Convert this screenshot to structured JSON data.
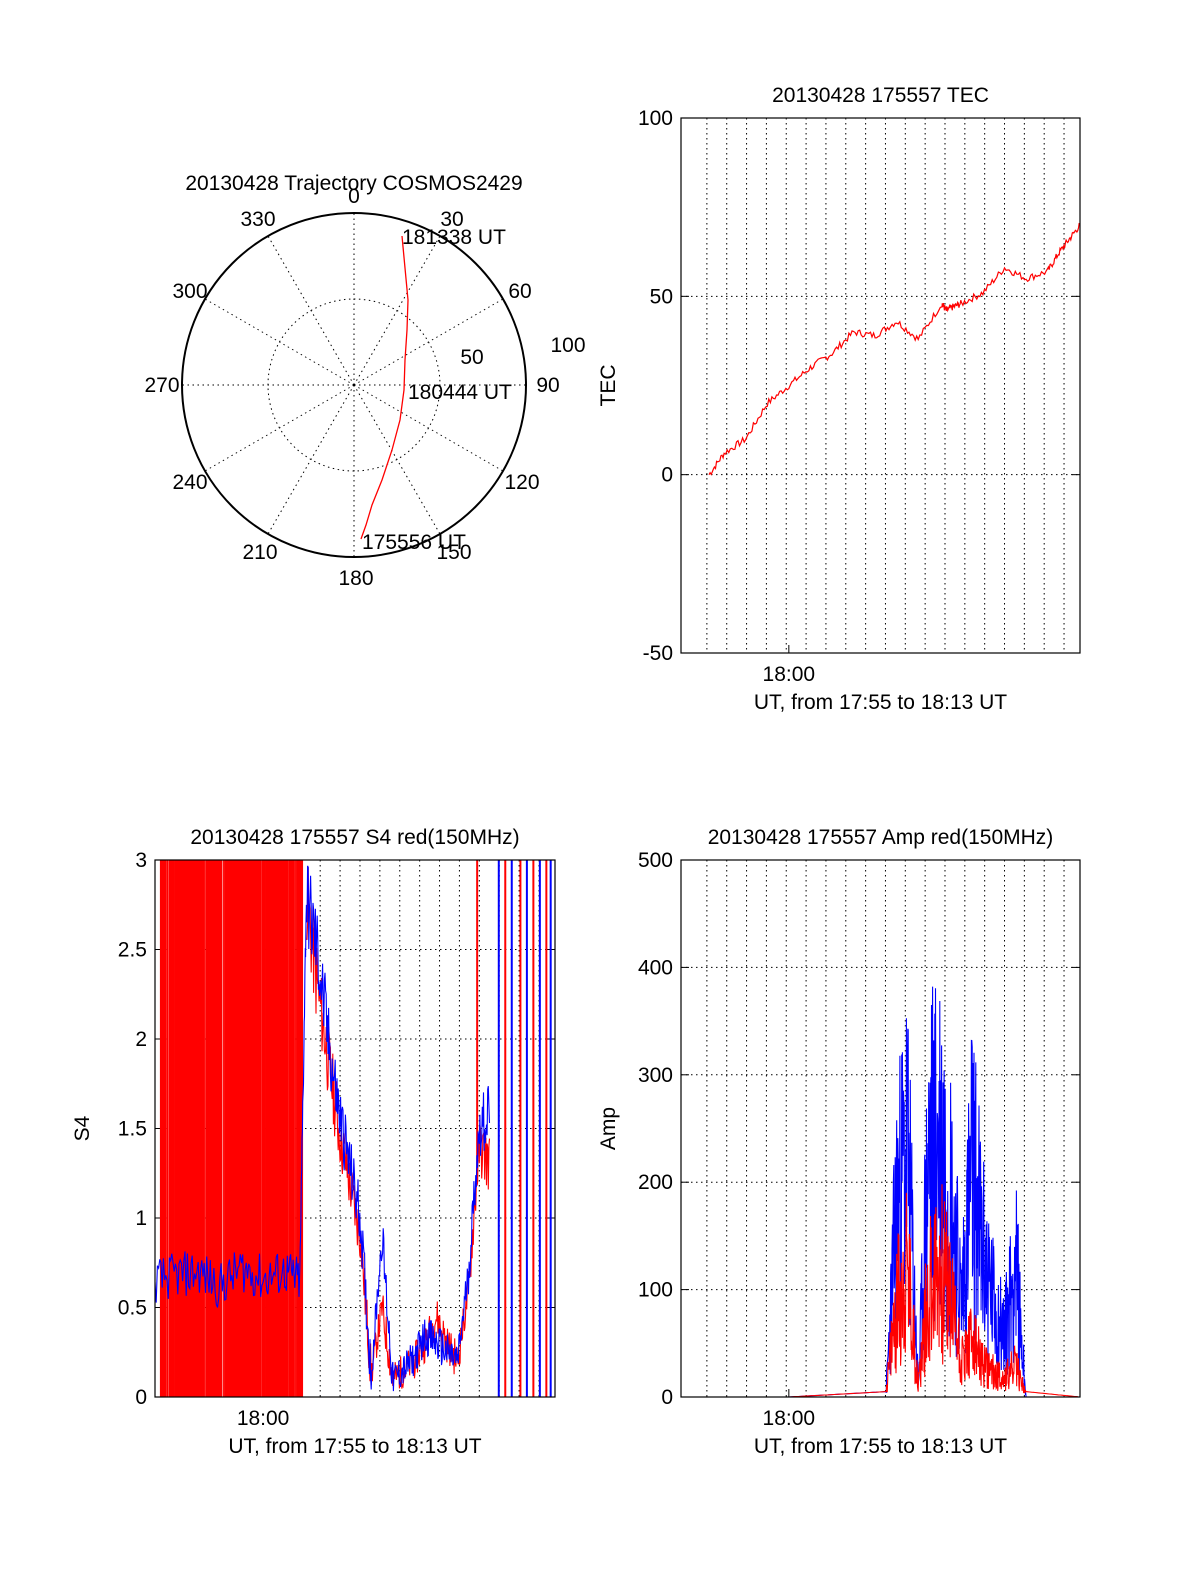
{
  "chart_data": [
    {
      "type": "polar",
      "title": "20130428 Trajectory COSMOS2429",
      "angle_labels": [
        "0",
        "30",
        "60",
        "90",
        "120",
        "150",
        "180",
        "210",
        "240",
        "270",
        "300",
        "330"
      ],
      "radial_labels": [
        "50",
        "100"
      ],
      "series": [
        {
          "color": "#ff0000",
          "points_az_el": [
            [
              3,
              12
            ],
            [
              8,
              40
            ],
            [
              15,
              62
            ],
            [
              30,
              80
            ],
            [
              120,
              75
            ],
            [
              145,
              52
            ],
            [
              165,
              28
            ],
            [
              177,
              8
            ]
          ]
        }
      ],
      "annotations": [
        "181338 UT",
        "180444 UT",
        "175556 UT"
      ]
    },
    {
      "type": "line",
      "title": "20130428 175557 TEC",
      "ylabel": "TEC",
      "xlabel": "UT, from 17:55 to 18:13 UT",
      "ylim": [
        -50,
        100
      ],
      "yticks": [
        "100",
        "50",
        "0",
        "-50"
      ],
      "xticks": [
        "18:00"
      ],
      "grid": true,
      "series": [
        {
          "color": "#ff0000",
          "x_minutes_after_1755": [
            1.3,
            2.0,
            3.0,
            4.0,
            5.0,
            6.0,
            7.0,
            8.0,
            9.0,
            10.0,
            11.0,
            12.1,
            12.3,
            12.6,
            13.0,
            14.0,
            15.0,
            16.0,
            17.0,
            17.5,
            18.0,
            18.5
          ],
          "values": [
            0,
            6,
            10,
            20,
            25,
            30,
            34,
            40,
            39,
            43,
            38,
            48,
            46,
            47,
            48,
            51,
            58,
            55,
            57,
            62,
            66,
            70
          ]
        }
      ]
    },
    {
      "type": "line",
      "title": "20130428 175557 S4 red(150MHz)",
      "ylabel": "S4",
      "xlabel": "UT, from 17:55 to 18:13 UT",
      "ylim": [
        0,
        3
      ],
      "yticks": [
        "3",
        "2.5",
        "2",
        "1.5",
        "1",
        "0.5",
        "0"
      ],
      "xticks": [
        "18:00"
      ],
      "grid": true,
      "series": [
        {
          "color": "#ff0000",
          "x_minutes_after_1755": [
            7.0,
            7.5,
            8.0,
            8.5,
            9.0,
            9.5,
            10.0,
            10.5,
            11.0,
            11.5,
            12.0,
            12.5,
            13.0,
            13.5,
            14.0,
            14.5,
            15.0,
            15.5
          ],
          "values": [
            2.8,
            2.3,
            1.9,
            1.5,
            1.2,
            0.9,
            0.12,
            0.5,
            0.1,
            0.15,
            0.2,
            0.3,
            0.45,
            0.3,
            0.2,
            0.6,
            1.4,
            1.3
          ]
        },
        {
          "color": "#0000ff",
          "x_minutes_after_1755": [
            0.0,
            1.0,
            2.0,
            3.0,
            4.0,
            5.0,
            6.0,
            6.7,
            7.0,
            7.5,
            8.0,
            8.5,
            9.0,
            9.5,
            10.0,
            10.5,
            11.0,
            11.5,
            12.0,
            12.5,
            13.0,
            13.5,
            14.0,
            14.5,
            15.0,
            15.5
          ],
          "values": [
            0.65,
            0.68,
            0.7,
            0.62,
            0.72,
            0.66,
            0.7,
            0.65,
            2.8,
            2.5,
            2.0,
            1.6,
            1.3,
            1.0,
            0.12,
            0.9,
            0.1,
            0.15,
            0.22,
            0.35,
            0.3,
            0.25,
            0.2,
            0.7,
            1.5,
            1.6
          ]
        }
      ]
    },
    {
      "type": "line",
      "title": "20130428 175557 Amp red(150MHz)",
      "ylabel": "Amp",
      "xlabel": "UT, from 17:55 to 18:13 UT",
      "ylim": [
        0,
        500
      ],
      "yticks": [
        "500",
        "400",
        "300",
        "200",
        "100",
        "0"
      ],
      "xticks": [
        "18:00"
      ],
      "grid": true,
      "series": [
        {
          "color": "#0000ff",
          "x_minutes_after_1755": [
            1.3,
            5.0,
            9.5,
            10.0,
            10.5,
            11.0,
            11.5,
            12.0,
            12.5,
            13.0,
            13.5,
            14.0,
            14.5,
            15.0,
            15.5,
            16.0,
            18.5
          ],
          "values": [
            0,
            0,
            5,
            300,
            400,
            20,
            390,
            420,
            330,
            150,
            370,
            230,
            150,
            100,
            220,
            0,
            0
          ]
        },
        {
          "color": "#ff0000",
          "x_minutes_after_1755": [
            1.3,
            5.0,
            9.5,
            10.0,
            10.5,
            11.0,
            11.5,
            12.0,
            12.5,
            13.0,
            13.5,
            14.0,
            14.5,
            15.0,
            15.5,
            16.0,
            18.5
          ],
          "values": [
            0,
            0,
            5,
            150,
            200,
            20,
            180,
            210,
            160,
            60,
            90,
            50,
            40,
            30,
            50,
            5,
            0
          ]
        }
      ]
    }
  ]
}
